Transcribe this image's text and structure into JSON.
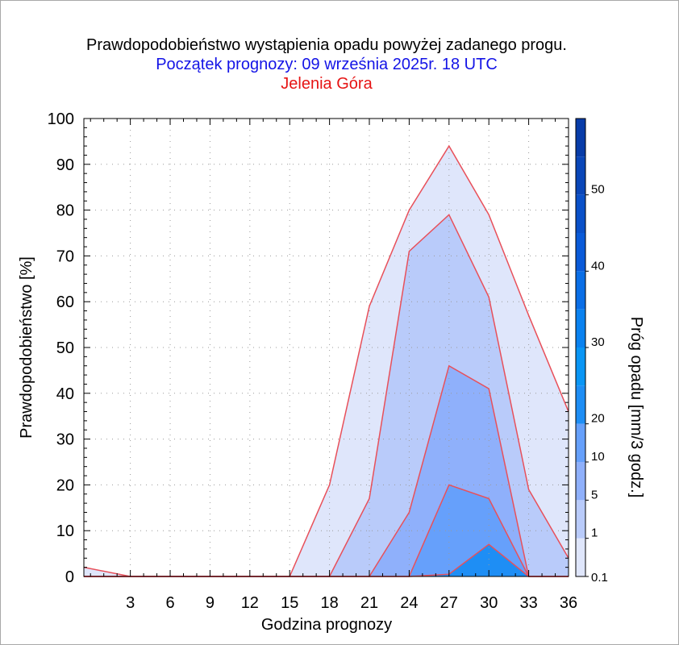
{
  "titles": {
    "main": "Prawdopodobieństwo wystąpienia opadu powyżej zadanego progu.",
    "start": "Początek prognozy: 09 września 2025r. 18 UTC",
    "location": "Jelenia Góra"
  },
  "colors": {
    "title_main": "#000000",
    "title_start": "#1414e6",
    "title_location": "#e61414",
    "contour_line": "#e8505a",
    "grid": "#9a9a9a"
  },
  "chart_data": {
    "type": "area",
    "xlabel": "Godzina prognozy",
    "ylabel": "Prawdopodobieństwo [%]",
    "xlim": [
      -0.5,
      36
    ],
    "ylim": [
      0,
      100
    ],
    "x_ticks": [
      3,
      6,
      9,
      12,
      15,
      18,
      21,
      24,
      27,
      30,
      33,
      36
    ],
    "y_ticks": [
      0,
      10,
      20,
      30,
      40,
      50,
      60,
      70,
      80,
      90,
      100
    ],
    "grid": true,
    "x": [
      -0.5,
      3,
      6,
      9,
      12,
      15,
      18,
      21,
      24,
      27,
      30,
      33,
      36
    ],
    "series": [
      {
        "threshold": "0.1",
        "color": "#dfe6fb",
        "values": [
          2,
          0,
          0,
          0,
          0,
          0,
          20,
          59,
          80,
          94,
          79,
          57,
          36
        ]
      },
      {
        "threshold": "1",
        "color": "#b9cbfa",
        "values": [
          0,
          0,
          0,
          0,
          0,
          0,
          0,
          17,
          71,
          79,
          61,
          19,
          4
        ]
      },
      {
        "threshold": "5",
        "color": "#8fb0fb",
        "values": [
          0,
          0,
          0,
          0,
          0,
          0,
          0,
          0,
          14,
          46,
          41,
          0,
          0
        ]
      },
      {
        "threshold": "10",
        "color": "#66a0fb",
        "values": [
          0,
          0,
          0,
          0,
          0,
          0,
          0,
          0,
          0,
          20,
          17,
          0,
          0
        ]
      },
      {
        "threshold": "20",
        "color": "#1e8ef5",
        "values": [
          0,
          0,
          0,
          0,
          0,
          0,
          0,
          0,
          0,
          0.5,
          7,
          0,
          0
        ]
      }
    ],
    "colorbar": {
      "label": "Próg opadu [mm/3 godz.]",
      "tick_labels": [
        "0.1",
        "1",
        "5",
        "10",
        "20",
        "30",
        "40",
        "50"
      ],
      "bands": [
        {
          "from": "0.1",
          "to": "1",
          "color": "#dfe6fb"
        },
        {
          "from": "1",
          "to": "5",
          "color": "#b9cbfa"
        },
        {
          "from": "5",
          "to": "10",
          "color": "#8fb0fb"
        },
        {
          "from": "10",
          "to": "20",
          "color": "#66a0fb"
        },
        {
          "from": "20",
          "to": "25",
          "color": "#1e8ef5"
        },
        {
          "from": "25",
          "to": "30",
          "color": "#0a96f5"
        },
        {
          "from": "30",
          "to": "35",
          "color": "#0a82f0"
        },
        {
          "from": "35",
          "to": "40",
          "color": "#0a6ee6"
        },
        {
          "from": "40",
          "to": "45",
          "color": "#0a5ad8"
        },
        {
          "from": "45",
          "to": "50",
          "color": "#0a50c8"
        },
        {
          "from": "50",
          "to": "55",
          "color": "#0a46b8"
        },
        {
          "from": "55",
          "to": "60",
          "color": "#083ca8"
        }
      ]
    }
  }
}
